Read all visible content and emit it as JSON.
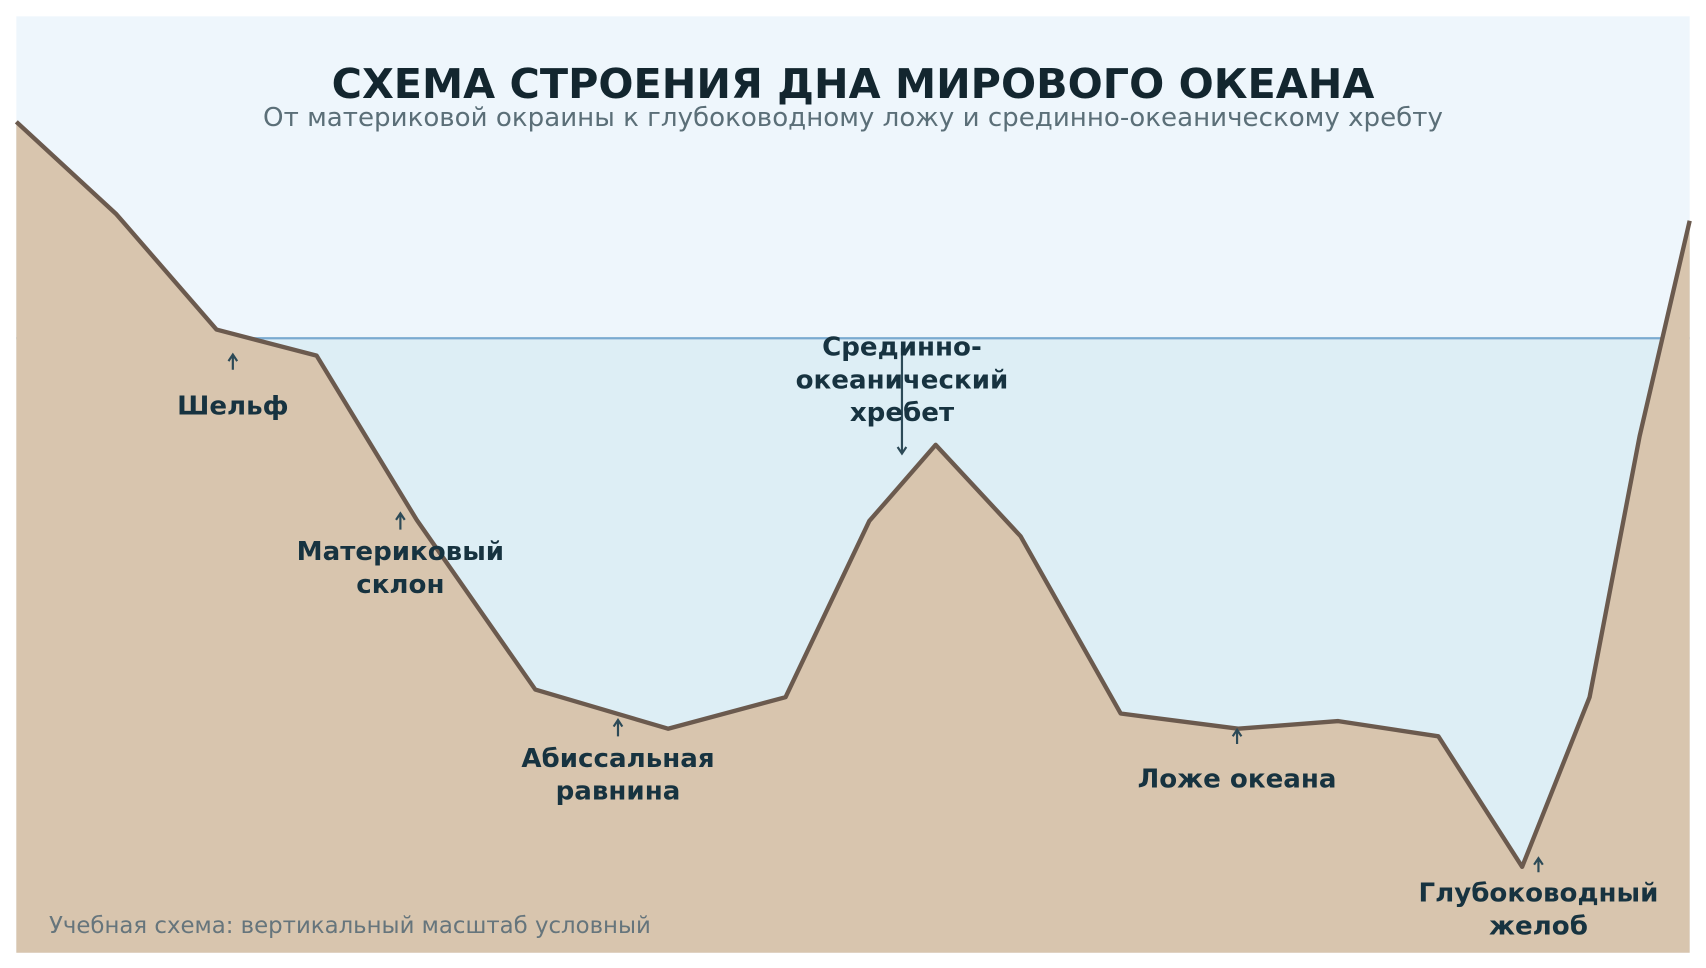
{
  "title": "СХЕМА СТРОЕНИЯ ДНА МИРОВОГО ОКЕАНА",
  "subtitle": "От материковой окраины к глубоководному ложу и срединно-океаническому хребту",
  "labels": [
    {
      "lines": [
        "Шельф"
      ]
    },
    {
      "lines": [
        "Материковый",
        "склон"
      ]
    },
    {
      "lines": [
        "Абиссальная",
        "равнина"
      ]
    },
    {
      "lines": [
        "Срединно-",
        "океанический",
        "хребет"
      ]
    },
    {
      "lines": [
        "Ложе океана"
      ]
    },
    {
      "lines": [
        "Глубоководный",
        "желоб"
      ]
    }
  ],
  "note": "Учебная схема: вертикальный масштаб условный"
}
